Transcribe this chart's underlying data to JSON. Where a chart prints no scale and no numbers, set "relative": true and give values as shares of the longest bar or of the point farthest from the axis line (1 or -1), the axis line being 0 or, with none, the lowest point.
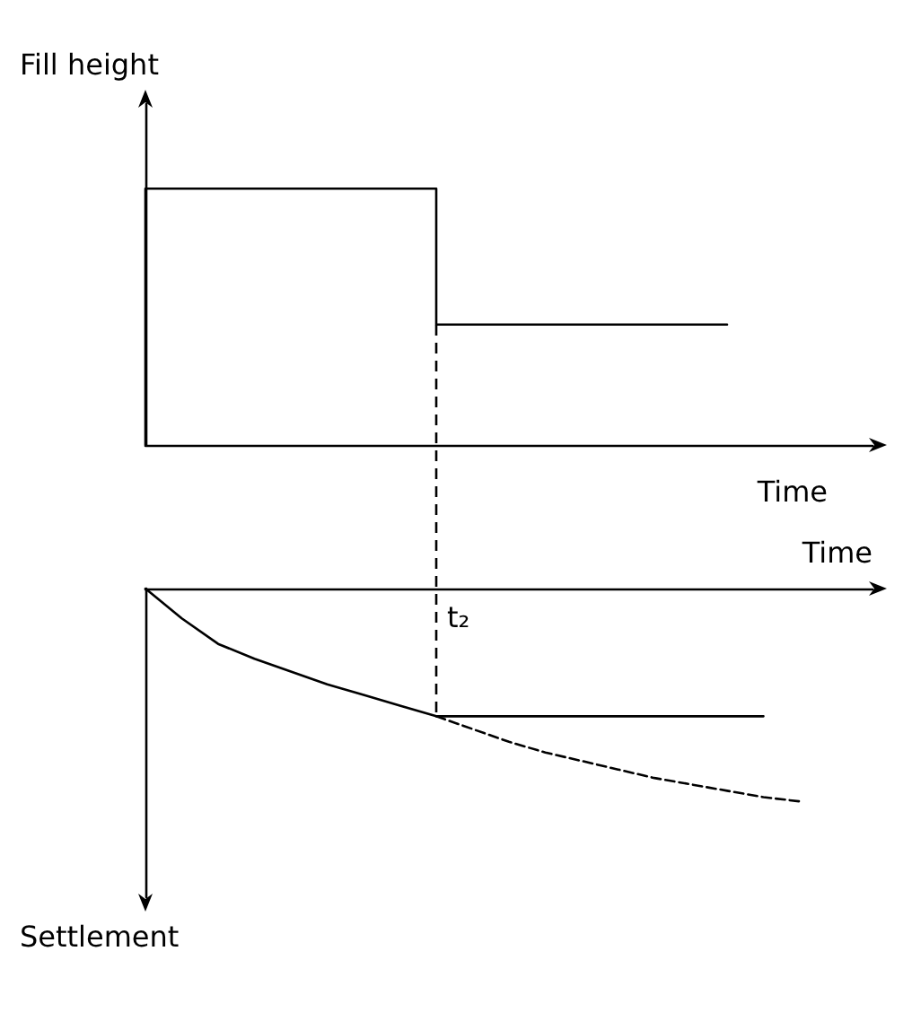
{
  "chart_data": [
    {
      "type": "step",
      "relative": true,
      "ylabel": "Fill height",
      "xlabel": "Time",
      "tick_labels": false,
      "marker": "none",
      "categories": [
        null,
        null,
        null,
        null,
        null,
        null,
        null,
        null,
        null,
        null,
        null,
        null,
        null,
        null,
        null,
        null,
        null,
        null,
        null,
        null,
        null
      ],
      "series": [
        {
          "color": "#000000",
          "values": [
            0,
            1,
            1,
            1,
            1,
            1,
            1,
            1,
            1,
            0.47,
            0.47,
            0.47,
            0.47,
            0.47,
            0.47,
            0.47,
            0.47,
            null,
            null,
            null,
            null
          ]
        }
      ]
    },
    {
      "type": "line",
      "relative": true,
      "ylabel": "Settlement",
      "xlabel": "Time",
      "tick_labels": false,
      "marker": "none",
      "annotations": [
        "t₂"
      ],
      "categories": [
        null,
        null,
        null,
        null,
        null,
        null,
        null,
        null,
        null,
        null,
        null,
        null,
        null,
        null,
        null,
        null,
        null,
        null,
        null,
        null,
        null
      ],
      "series": [
        {
          "color": "#000000",
          "values": [
            0,
            -0.14,
            -0.26,
            -0.33,
            -0.39,
            -0.45,
            -0.5,
            -0.55,
            -0.6,
            -0.6,
            -0.6,
            -0.6,
            -0.6,
            -0.6,
            -0.6,
            -0.6,
            -0.6,
            -0.6,
            null,
            null,
            null
          ]
        },
        {
          "color": "#000000",
          "line_style": "dashed",
          "values": [
            null,
            null,
            null,
            null,
            null,
            null,
            null,
            null,
            -0.6,
            -0.66,
            -0.72,
            -0.77,
            -0.81,
            -0.85,
            -0.89,
            -0.92,
            -0.95,
            -0.98,
            -1,
            null,
            null
          ]
        }
      ]
    }
  ]
}
